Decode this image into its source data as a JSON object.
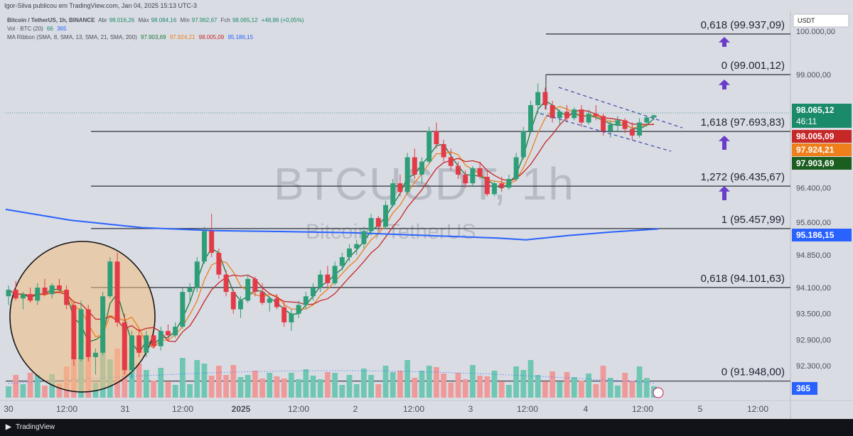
{
  "header": {
    "publisher": "Igor-Silva publicou em TradingView.com, Jan 04, 2025 15:13 UTC-3",
    "currency_box": "USDT"
  },
  "legend": {
    "symbol": "Bitcoin / TetherUS, 1h, BINANCE",
    "abr_label": "Abr",
    "abr": "98.016,26",
    "max_label": "Máx",
    "max": "98.084,16",
    "min_label": "Mín",
    "min": "97.962,67",
    "fch_label": "Fch",
    "fch": "98.065,12",
    "change": "+48,86 (+0,05%)",
    "vol_label": "Vol · BTC (20)",
    "vol_a": "66",
    "vol_b": "365",
    "ma_label": "MA Ribbon (SMA, 8, SMA, 13, SMA, 21, SMA, 200)",
    "ma1": "97.903,69",
    "ma2": "97.924,21",
    "ma3": "98.005,09",
    "ma4": "95.186,15"
  },
  "watermark": {
    "symbol": "BTCUSDT, 1h",
    "name": "Bitcoin / TetherUS"
  },
  "footer": {
    "brand": "TradingView"
  },
  "colors": {
    "bg": "#d9dce3",
    "up": "#2e9e78",
    "down": "#e23b47",
    "volup": "#6fc7b3",
    "voldown": "#ef9a9a",
    "ma1": "#1b7a3a",
    "ma2": "#ef7f1a",
    "ma3": "#c62828",
    "ma4": "#2962ff",
    "arrow": "#6a3dc9"
  },
  "chart_data": {
    "type": "candlestick",
    "y_axis": {
      "range": [
        92000,
        100500
      ],
      "ticks": [
        {
          "value": 100000,
          "label": "100.000,00"
        },
        {
          "value": 99000,
          "label": "99.000,00"
        },
        {
          "value": 96400,
          "label": "96.400,00"
        },
        {
          "value": 95600,
          "label": "95.600,00"
        },
        {
          "value": 94850,
          "label": "94.850,00"
        },
        {
          "value": 94100,
          "label": "94.100,00"
        },
        {
          "value": 93500,
          "label": "93.500,00"
        },
        {
          "value": 92900,
          "label": "92.900,00"
        },
        {
          "value": 92300,
          "label": "92.300,00"
        }
      ]
    },
    "x_axis": {
      "ticks": [
        {
          "label": "30",
          "bold": false
        },
        {
          "label": "12:00",
          "bold": false
        },
        {
          "label": "31",
          "bold": false
        },
        {
          "label": "12:00",
          "bold": false
        },
        {
          "label": "2025",
          "bold": true
        },
        {
          "label": "12:00",
          "bold": false
        },
        {
          "label": "2",
          "bold": false
        },
        {
          "label": "12:00",
          "bold": false
        },
        {
          "label": "3",
          "bold": false
        },
        {
          "label": "12:00",
          "bold": false
        },
        {
          "label": "4",
          "bold": false
        },
        {
          "label": "12:00",
          "bold": false
        },
        {
          "label": "5",
          "bold": false
        },
        {
          "label": "12:00",
          "bold": false
        }
      ]
    },
    "fib_levels": [
      {
        "value": 99937.09,
        "label": "0,618 (99.937,09)"
      },
      {
        "value": 99001.12,
        "label": "0 (99.001,12)"
      },
      {
        "value": 97693.83,
        "label": "1,618 (97.693,83)"
      },
      {
        "value": 96435.67,
        "label": "1,272 (96.435,67)"
      },
      {
        "value": 95457.99,
        "label": "1 (95.457,99)"
      },
      {
        "value": 94101.63,
        "label": "0,618 (94.101,63)"
      },
      {
        "value": 91948.0,
        "label": "0 (91.948,00)"
      }
    ],
    "price_tags": [
      {
        "value": 98065.12,
        "label": "98.065,12",
        "sub": "46:11",
        "color": "#1b8a6b"
      },
      {
        "value": 98005.09,
        "label": "98.005,09",
        "color": "#c62828"
      },
      {
        "value": 97924.21,
        "label": "97.924,21",
        "color": "#ef7f1a"
      },
      {
        "value": 97903.69,
        "label": "97.903,69",
        "color": "#1b5e20"
      },
      {
        "value": 95186.15,
        "label": "95.186,15",
        "color": "#2962ff"
      }
    ],
    "volume_tag": "365",
    "current_price": 98065.12,
    "candles": [
      [
        93900,
        94150,
        93700,
        94050
      ],
      [
        94050,
        94250,
        93800,
        93850
      ],
      [
        93850,
        94000,
        93600,
        93950
      ],
      [
        93950,
        94100,
        93750,
        93800
      ],
      [
        93800,
        94200,
        93700,
        94100
      ],
      [
        94100,
        94300,
        93900,
        93950
      ],
      [
        93950,
        94200,
        93850,
        94150
      ],
      [
        94150,
        94300,
        94000,
        94050
      ],
      [
        94050,
        94150,
        93600,
        93700
      ],
      [
        93700,
        93800,
        92300,
        92450
      ],
      [
        92450,
        93800,
        92400,
        93600
      ],
      [
        93600,
        93700,
        92400,
        92500
      ],
      [
        92500,
        92700,
        92100,
        92600
      ],
      [
        92600,
        94000,
        92550,
        93900
      ],
      [
        93900,
        94800,
        93850,
        94700
      ],
      [
        94700,
        94900,
        93200,
        93300
      ],
      [
        93300,
        93500,
        92100,
        92200
      ],
      [
        92200,
        93100,
        92000,
        93000
      ],
      [
        93000,
        93150,
        92500,
        92600
      ],
      [
        92600,
        93100,
        92500,
        93000
      ],
      [
        93000,
        93050,
        92700,
        92750
      ],
      [
        92750,
        93200,
        92650,
        93100
      ],
      [
        93100,
        93250,
        92900,
        93000
      ],
      [
        93000,
        93300,
        92950,
        93200
      ],
      [
        93200,
        94100,
        93150,
        94000
      ],
      [
        94000,
        94200,
        93800,
        94100
      ],
      [
        94100,
        94800,
        94000,
        94700
      ],
      [
        94700,
        95500,
        94650,
        95400
      ],
      [
        95400,
        95800,
        94800,
        94900
      ],
      [
        94900,
        95000,
        94300,
        94400
      ],
      [
        94400,
        94500,
        93900,
        94000
      ],
      [
        94000,
        94050,
        93500,
        93600
      ],
      [
        93600,
        93900,
        93400,
        93800
      ],
      [
        93800,
        94400,
        93750,
        94300
      ],
      [
        94300,
        94350,
        93900,
        94000
      ],
      [
        94000,
        94200,
        93700,
        93750
      ],
      [
        93750,
        93900,
        93550,
        93850
      ],
      [
        93850,
        93950,
        93600,
        93650
      ],
      [
        93650,
        93800,
        93200,
        93300
      ],
      [
        93300,
        93600,
        93100,
        93500
      ],
      [
        93500,
        93800,
        93400,
        93700
      ],
      [
        93700,
        94000,
        93600,
        93900
      ],
      [
        93900,
        94200,
        93800,
        94100
      ],
      [
        94100,
        94500,
        94000,
        94400
      ],
      [
        94400,
        94600,
        94100,
        94200
      ],
      [
        94200,
        94700,
        94150,
        94600
      ],
      [
        94600,
        94900,
        94500,
        94800
      ],
      [
        94800,
        95100,
        94700,
        95000
      ],
      [
        95000,
        95200,
        94850,
        95100
      ],
      [
        95100,
        95500,
        95000,
        95400
      ],
      [
        95400,
        95800,
        95300,
        95700
      ],
      [
        95700,
        95750,
        95400,
        95500
      ],
      [
        95500,
        96100,
        95450,
        96000
      ],
      [
        96000,
        96600,
        95950,
        96500
      ],
      [
        96500,
        96700,
        96200,
        96300
      ],
      [
        96300,
        97200,
        96250,
        97100
      ],
      [
        97100,
        97300,
        96600,
        96700
      ],
      [
        96700,
        97100,
        96500,
        97000
      ],
      [
        97000,
        97800,
        96950,
        97700
      ],
      [
        97700,
        97900,
        97300,
        97400
      ],
      [
        97400,
        97500,
        97000,
        97100
      ],
      [
        97100,
        97300,
        96800,
        96900
      ],
      [
        96900,
        97000,
        96600,
        96700
      ],
      [
        96700,
        96800,
        96400,
        96500
      ],
      [
        96500,
        96900,
        96450,
        96850
      ],
      [
        96850,
        97000,
        96600,
        96650
      ],
      [
        96650,
        96800,
        96200,
        96250
      ],
      [
        96250,
        96550,
        96200,
        96500
      ],
      [
        96500,
        96650,
        96300,
        96400
      ],
      [
        96400,
        96700,
        96350,
        96600
      ],
      [
        96600,
        97200,
        96550,
        97100
      ],
      [
        97100,
        97800,
        97050,
        97700
      ],
      [
        97700,
        98400,
        97650,
        98300
      ],
      [
        98300,
        98800,
        98100,
        98600
      ],
      [
        98600,
        98700,
        98200,
        98300
      ],
      [
        98300,
        98400,
        97900,
        98000
      ],
      [
        98000,
        98200,
        97850,
        98150
      ],
      [
        98150,
        98300,
        97900,
        98000
      ],
      [
        98000,
        98250,
        97950,
        98200
      ],
      [
        98200,
        98300,
        97800,
        97900
      ],
      [
        97900,
        98200,
        97850,
        98100
      ],
      [
        98100,
        98300,
        97950,
        98050
      ],
      [
        98050,
        98100,
        97600,
        97700
      ],
      [
        97700,
        97950,
        97550,
        97850
      ],
      [
        97850,
        98050,
        97700,
        97950
      ],
      [
        97950,
        98000,
        97650,
        97750
      ],
      [
        97750,
        97900,
        97500,
        97600
      ],
      [
        97600,
        98000,
        97550,
        97900
      ],
      [
        97900,
        98050,
        97800,
        98016
      ],
      [
        98016,
        98084,
        97962,
        98065
      ]
    ],
    "ma_series": {
      "ma8": "#1b7a3a",
      "ma13": "#ef7f1a",
      "ma21": "#c62828",
      "ma200": "#2962ff"
    }
  }
}
